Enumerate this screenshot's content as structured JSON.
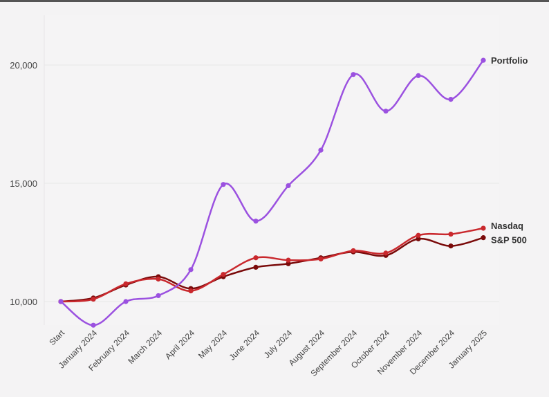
{
  "chart_data": {
    "type": "line",
    "categories": [
      "Start",
      "January 2024",
      "February 2024",
      "March 2024",
      "April 2024",
      "May 2024",
      "June 2024",
      "July 2024",
      "August 2024",
      "September 2024",
      "October 2024",
      "November 2024",
      "December 2024",
      "January 2025"
    ],
    "y_ticks": [
      {
        "value": 10000,
        "label": "10,000"
      },
      {
        "value": 15000,
        "label": "15,000"
      },
      {
        "value": 20000,
        "label": "20,000"
      }
    ],
    "ylim": [
      9000,
      22000
    ],
    "grid": true,
    "legend": "end-of-line labels",
    "series": [
      {
        "name": "Portfolio",
        "color": "#9b51e0",
        "values": [
          10000,
          9000,
          10000,
          10250,
          11350,
          14950,
          13400,
          14900,
          16400,
          19600,
          18050,
          19550,
          18550,
          20200
        ]
      },
      {
        "name": "Nasdaq",
        "color": "#c9282d",
        "values": [
          10000,
          10100,
          10750,
          10950,
          10450,
          11150,
          11850,
          11750,
          11800,
          12150,
          12050,
          12800,
          12850,
          13100
        ]
      },
      {
        "name": "S&P 500",
        "color": "#7a0a0a",
        "values": [
          10000,
          10150,
          10700,
          11050,
          10550,
          11050,
          11450,
          11600,
          11850,
          12100,
          11950,
          12650,
          12350,
          12700
        ]
      }
    ]
  }
}
